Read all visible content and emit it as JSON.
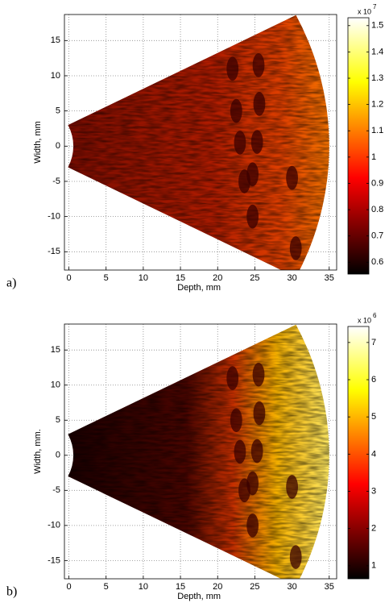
{
  "chart_data": [
    {
      "type": "heatmap",
      "panel_label": "a)",
      "xlabel": "Depth, mm",
      "ylabel": "Width, mm",
      "xlim": [
        -0.6,
        36
      ],
      "ylim": [
        -17.6,
        18.7
      ],
      "xticks": [
        0,
        5,
        10,
        15,
        20,
        25,
        30,
        35
      ],
      "yticks": [
        -15,
        -10,
        -5,
        0,
        5,
        10,
        15
      ],
      "grid": true,
      "colormap": "hot",
      "colorbar": {
        "clim": [
          0.555,
          1.53
        ],
        "ticks": [
          0.6,
          0.7,
          0.8,
          0.9,
          1,
          1.1,
          1.2,
          1.3,
          1.4,
          1.5
        ],
        "multiplier": "x 10",
        "exponent": "7"
      }
    },
    {
      "type": "heatmap",
      "panel_label": "b)",
      "xlabel": "Depth, mm",
      "ylabel": "Width, mm.",
      "xlim": [
        -0.6,
        36
      ],
      "ylim": [
        -17.6,
        18.7
      ],
      "xticks": [
        0,
        5,
        10,
        15,
        20,
        25,
        30,
        35
      ],
      "yticks": [
        -15,
        -10,
        -5,
        0,
        5,
        10,
        15
      ],
      "grid": true,
      "colormap": "hot",
      "colorbar": {
        "clim": [
          0.65,
          7.43
        ],
        "ticks": [
          1,
          2,
          3,
          4,
          5,
          6,
          7
        ],
        "multiplier": "x 10",
        "exponent": "6"
      }
    }
  ]
}
